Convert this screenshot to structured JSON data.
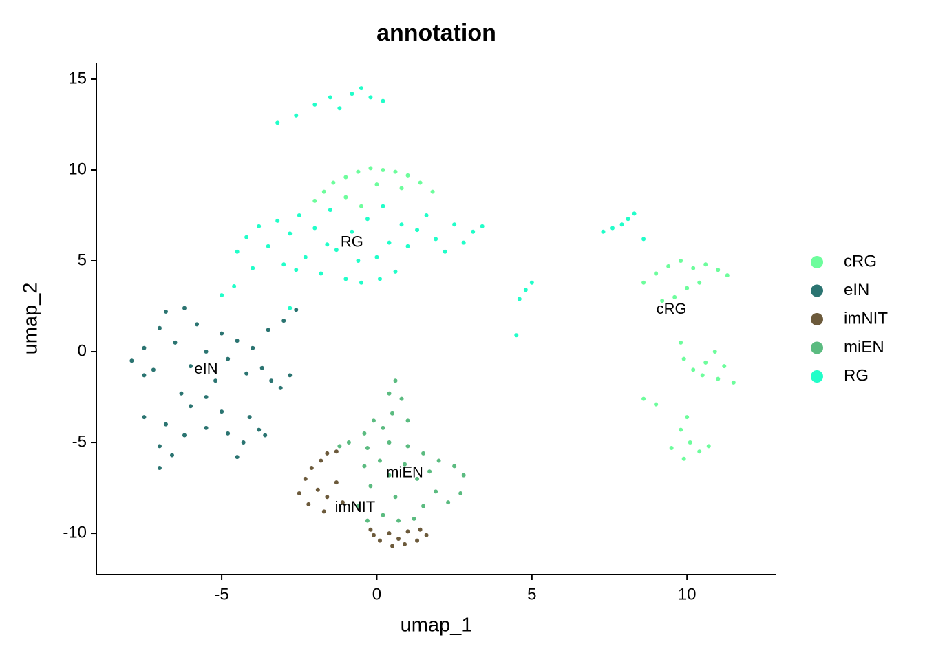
{
  "chart_data": {
    "type": "scatter",
    "title": "annotation",
    "x_label": "umap_1",
    "y_label": "umap_2",
    "xlim": [
      -9.04,
      12.88
    ],
    "ylim": [
      -12.27,
      15.87
    ],
    "xticks": [
      -5,
      0,
      5,
      10
    ],
    "yticks": [
      -10,
      -5,
      0,
      5,
      10,
      15
    ],
    "grid": false,
    "legend": "right",
    "series": [
      {
        "name": "cRG",
        "color": "#6dfd9c",
        "x": [
          -2.0,
          -1.7,
          -1.4,
          -1.0,
          -0.6,
          -0.2,
          0.2,
          0.6,
          1.0,
          1.4,
          1.8,
          -1.0,
          0,
          0.8,
          -0.5,
          8.6,
          9.0,
          9.4,
          9.8,
          10.2,
          10.6,
          11.0,
          11.3,
          10.0,
          9.6,
          9.2,
          10.4,
          9.8,
          9.9,
          10.2,
          10.6,
          10.9,
          11.2,
          11.5,
          11.0,
          10.5,
          8.6,
          9.0,
          10.0,
          9.8,
          10.1,
          9.5,
          9.9,
          10.4,
          10.7
        ],
        "y": [
          8.3,
          8.8,
          9.3,
          9.6,
          9.9,
          10.1,
          10.0,
          9.9,
          9.7,
          9.3,
          8.8,
          8.5,
          9.2,
          9.0,
          8.0,
          3.8,
          4.3,
          4.7,
          5.0,
          4.6,
          4.8,
          4.5,
          4.2,
          3.5,
          3.0,
          2.8,
          3.8,
          0.5,
          -0.4,
          -1.0,
          -0.6,
          0,
          -0.8,
          -1.7,
          -1.5,
          -1.3,
          -2.6,
          -2.9,
          -3.6,
          -4.3,
          -5.0,
          -5.3,
          -5.9,
          -5.5,
          -5.2
        ]
      },
      {
        "name": "eIN",
        "color": "#2b7471",
        "x": [
          -7.9,
          -7.5,
          -7.2,
          -7.0,
          -6.8,
          -6.5,
          -6.2,
          -6.0,
          -5.8,
          -5.5,
          -5.2,
          -5.0,
          -4.8,
          -4.5,
          -4.2,
          -4.0,
          -3.7,
          -3.4,
          -3.1,
          -2.8,
          -3.5,
          -3.0,
          -2.6,
          -5.5,
          -5.0,
          -4.8,
          -5.5,
          -6.2,
          -6.8,
          -7.5,
          -7.0,
          -6.6,
          -7.0,
          -4.5,
          -4.3,
          -3.8,
          -3.6,
          -4.1,
          -6.3,
          -6.0,
          -7.5
        ],
        "y": [
          -0.5,
          0.2,
          -1.0,
          1.3,
          2.2,
          0.5,
          2.4,
          -0.8,
          1.5,
          0,
          -1.6,
          1.0,
          -0.4,
          0.6,
          -1.2,
          0.2,
          -0.9,
          -1.6,
          -2.0,
          -1.3,
          1.2,
          1.7,
          2.3,
          -2.5,
          -3.3,
          -4.5,
          -4.2,
          -4.6,
          -4.0,
          -3.6,
          -5.2,
          -5.7,
          -6.4,
          -5.8,
          -5.0,
          -4.3,
          -4.6,
          -3.6,
          -2.3,
          -3.0,
          -1.3
        ]
      },
      {
        "name": "imNIT",
        "color": "#6c5a3b",
        "x": [
          -2.5,
          -2.3,
          -2.1,
          -1.8,
          -1.6,
          -1.3,
          -1.9,
          -1.6,
          -2.2,
          -1.7,
          -1.3,
          -1.1,
          -0.2,
          0.1,
          0.5,
          0.9,
          1.3,
          1.6,
          1.0,
          0.4,
          -0.1,
          0.7,
          1.4
        ],
        "y": [
          -7.8,
          -7.0,
          -6.4,
          -6.0,
          -5.6,
          -5.5,
          -7.6,
          -8.0,
          -8.4,
          -8.8,
          -7.2,
          -8.3,
          -9.8,
          -10.4,
          -10.7,
          -10.6,
          -10.4,
          -10.1,
          -9.9,
          -10.0,
          -10.1,
          -10.3,
          -9.8
        ]
      },
      {
        "name": "miEN",
        "color": "#5bbb80",
        "x": [
          0.6,
          0.4,
          0.8,
          0.5,
          1.0,
          0.2,
          -0.1,
          -0.4,
          -0.9,
          -1.2,
          -0.3,
          0.4,
          1.0,
          1.5,
          2.0,
          2.5,
          2.8,
          2.7,
          2.3,
          1.9,
          1.5,
          1.2,
          0.7,
          0.2,
          -0.3,
          -0.6,
          -0.2,
          0.4,
          0.9,
          1.3,
          0.6,
          -0.4,
          0.1,
          1.7
        ],
        "y": [
          -1.6,
          -2.3,
          -2.6,
          -3.4,
          -3.8,
          -4.2,
          -3.8,
          -4.5,
          -5.0,
          -5.2,
          -5.3,
          -5.0,
          -5.2,
          -5.6,
          -6.0,
          -6.3,
          -6.8,
          -7.8,
          -8.3,
          -7.7,
          -8.5,
          -9.2,
          -9.3,
          -9.0,
          -9.3,
          -8.5,
          -7.4,
          -6.8,
          -6.2,
          -7.0,
          -8.0,
          -6.3,
          -6.0,
          -6.6
        ]
      },
      {
        "name": "RG",
        "color": "#21fec9",
        "x": [
          -4.5,
          -4.2,
          -3.8,
          -3.5,
          -3.2,
          -3.0,
          -2.8,
          -2.5,
          -2.3,
          -2.0,
          -1.8,
          -1.5,
          -1.3,
          -1.0,
          -0.8,
          -0.5,
          -0.3,
          0,
          0.2,
          0.4,
          0.6,
          0.8,
          1.0,
          1.3,
          1.6,
          1.9,
          2.2,
          2.5,
          2.8,
          3.1,
          3.4,
          -0.6,
          -1.6,
          -2.6,
          0.1,
          -4.0,
          -4.6,
          -5.0,
          -2.8,
          -2.6,
          -2.0,
          -1.5,
          -0.8,
          -0.5,
          -0.2,
          -1.2,
          -3.2,
          0.2,
          7.3,
          7.6,
          7.9,
          8.1,
          8.3,
          4.6,
          4.8,
          5.0,
          4.5,
          8.6
        ],
        "y": [
          5.5,
          6.3,
          6.9,
          5.8,
          7.2,
          4.8,
          6.5,
          7.5,
          5.2,
          6.8,
          4.3,
          7.8,
          5.6,
          4.0,
          6.6,
          3.8,
          7.3,
          5.2,
          8.0,
          6.0,
          4.4,
          7.0,
          5.8,
          6.7,
          7.5,
          6.2,
          5.5,
          7.0,
          6.0,
          6.6,
          6.9,
          5.0,
          5.9,
          4.5,
          4.0,
          4.6,
          3.6,
          3.1,
          2.4,
          13.0,
          13.6,
          14.0,
          14.2,
          14.5,
          14.0,
          13.4,
          12.6,
          13.8,
          6.6,
          6.8,
          7.0,
          7.3,
          7.6,
          2.9,
          3.4,
          3.8,
          0.9,
          6.2
        ]
      }
    ],
    "annotations": [
      {
        "text": "RG",
        "x": -0.8,
        "y": 6.0
      },
      {
        "text": "cRG",
        "x": 9.5,
        "y": 2.3
      },
      {
        "text": "eIN",
        "x": -5.5,
        "y": -1.0
      },
      {
        "text": "miEN",
        "x": 0.9,
        "y": -6.7
      },
      {
        "text": "imNIT",
        "x": -0.7,
        "y": -8.6
      }
    ]
  }
}
